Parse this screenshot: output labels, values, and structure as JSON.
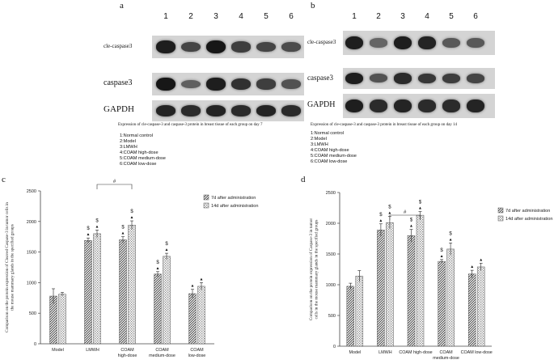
{
  "panel_a": {
    "letter": "a",
    "lanes": [
      "1",
      "2",
      "3",
      "4",
      "5",
      "6"
    ],
    "labels": [
      "cle-caspase3",
      "caspase3",
      "GAPDH"
    ],
    "caption": "Expression of cle-caspase-3 and caspase-3 protein in breast tissue of each group on day 7",
    "band_intensity": [
      [
        0.85,
        0.55,
        0.9,
        0.6,
        0.55,
        0.5
      ],
      [
        0.9,
        0.35,
        0.85,
        0.7,
        0.6,
        0.45
      ],
      [
        0.8,
        0.75,
        0.8,
        0.75,
        0.8,
        0.75
      ]
    ]
  },
  "panel_b": {
    "letter": "b",
    "lanes": [
      "1",
      "2",
      "3",
      "4",
      "5",
      "6"
    ],
    "labels": [
      "cle-caspase3",
      "caspase3",
      "GAPDH"
    ],
    "caption": "Expression of cle-caspase-3 and caspase-3 protein in breast tissue of each group on day 14",
    "band_intensity": [
      [
        0.85,
        0.3,
        0.85,
        0.8,
        0.4,
        0.4
      ],
      [
        0.85,
        0.45,
        0.75,
        0.65,
        0.6,
        0.55
      ],
      [
        0.85,
        0.75,
        0.8,
        0.75,
        0.75,
        0.8
      ]
    ]
  },
  "group_legend": [
    "1:Normal control",
    "2:Model",
    "3:LMWH",
    "4:COAM high-dose",
    "5:COAM medium-dose",
    "6:COAM low-dose"
  ],
  "chart_data": [
    {
      "panel": "c",
      "type": "bar",
      "ylabel": "Comparison on the protein expression of Cleaved Caspase-3 in tumor cells in the mouse mammary glands in the specified groups",
      "categories": [
        "Model",
        "LMWH",
        "COAM high-dose",
        "COAM medium-dose",
        "COAM low-dose"
      ],
      "series": [
        {
          "name": "7d after administration",
          "values": [
            780,
            1690,
            1700,
            1140,
            820
          ],
          "errors": [
            120,
            40,
            50,
            40,
            70
          ]
        },
        {
          "name": "14d after administration",
          "values": [
            810,
            1800,
            1940,
            1430,
            940
          ],
          "errors": [
            30,
            60,
            70,
            50,
            60
          ]
        }
      ],
      "marks": [
        [
          "",
          ""
        ],
        [
          "$ ▲",
          "$ ▲"
        ],
        [
          "$ ▲",
          "$ ▲"
        ],
        [
          "$ ▲",
          "$ ▲"
        ],
        [
          "▲",
          "▲"
        ]
      ],
      "significance": "#",
      "ylim": [
        0,
        2500
      ],
      "yticks": [
        0,
        500,
        1000,
        1500,
        2000,
        2500
      ],
      "legend_position": "top-right"
    },
    {
      "panel": "d",
      "type": "bar",
      "ylabel": "Comparison on the protein expression of Caspase-3 in tumor cells in the mouse mammary glands in the specified groups",
      "categories": [
        "Model",
        "LMWH",
        "COAM high-dose",
        "COAM medium-dose",
        "COAM low-dose"
      ],
      "series": [
        {
          "name": "7d after administration",
          "values": [
            975,
            1890,
            1800,
            1380,
            1175
          ],
          "errors": [
            50,
            100,
            100,
            30,
            60
          ]
        },
        {
          "name": "14d after administration",
          "values": [
            1140,
            2010,
            2130,
            1580,
            1290
          ],
          "errors": [
            90,
            100,
            60,
            100,
            60
          ]
        }
      ],
      "marks": [
        [
          "",
          ""
        ],
        [
          "$ ▲",
          "$ ▲"
        ],
        [
          "$ ▲",
          "$ ▲"
        ],
        [
          "$ ▲",
          "$ ▲"
        ],
        [
          "▲",
          "▲"
        ]
      ],
      "significance": "#",
      "ylim": [
        0,
        2500
      ],
      "yticks": [
        0,
        500,
        1000,
        1500,
        2000,
        2500
      ],
      "legend_position": "top-right"
    }
  ]
}
